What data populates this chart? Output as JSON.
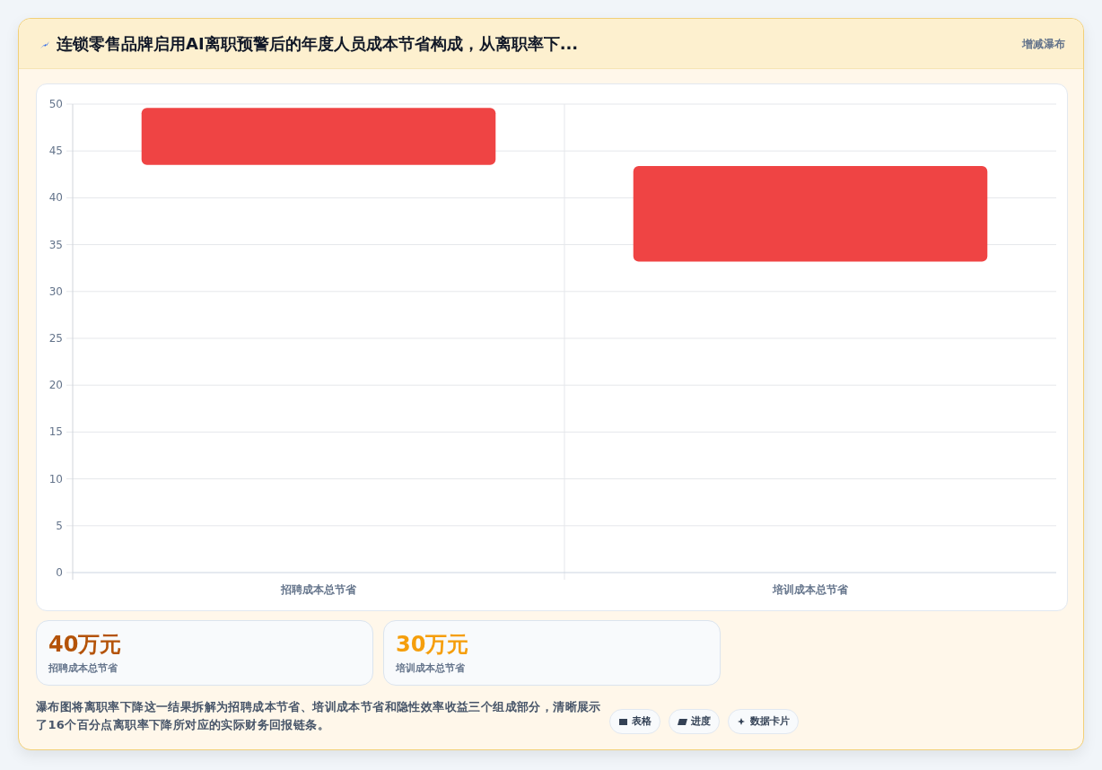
{
  "chart_data": [
    {
      "type": "bar",
      "title": "连锁零售品牌启用AI离职预警后的年度人员成本节省构成，从离职率下...",
      "subtitle": "增减瀑布",
      "categories": [
        "招聘成本总节省",
        "培训成本总节省"
      ],
      "values": [
        6.1,
        10.2
      ],
      "base": [
        43.5,
        33.2
      ],
      "color": "#ef4444",
      "ylim": [
        0,
        50
      ],
      "yticks": [
        0,
        5,
        10,
        15,
        20,
        25,
        30,
        35,
        40,
        45,
        50
      ],
      "grid": true,
      "annotations": [
        "瀑布图将离职率下降这一结果拆解为招聘成本节省、培训成本节省和隐性效率收益三个组成部分，清晰展示了16个百分点离职率下降所对应的实际财务回报链条。",
        "表格",
        "进度",
        "数据卡片"
      ]
    },
    {
      "type": "other",
      "annotations": [
        "40万元",
        "招聘成本总节省",
        "30万元",
        "培训成本总节省"
      ]
    }
  ]
}
